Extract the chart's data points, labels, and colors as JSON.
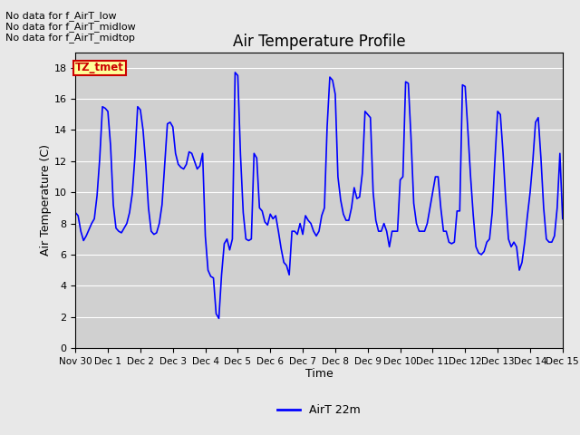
{
  "title": "Air Temperature Profile",
  "xlabel": "Time",
  "ylabel": "Air Temperature (C)",
  "ylim": [
    0,
    19
  ],
  "yticks": [
    0,
    2,
    4,
    6,
    8,
    10,
    12,
    14,
    16,
    18
  ],
  "line_color": "blue",
  "line_width": 1.2,
  "legend_label": "AirT 22m",
  "legend_line_color": "blue",
  "no_data_texts": [
    "No data for f_AirT_low",
    "No data for f_AirT_midlow",
    "No data for f_AirT_midtop"
  ],
  "tz_tmet_label": "TZ_tmet",
  "tz_tmet_color": "#cc0000",
  "tz_tmet_bg": "#ffff99",
  "background_color": "#e8e8e8",
  "plot_bg_color": "#d0d0d0",
  "x_tick_labels": [
    "Nov 30",
    "Dec 1",
    "Dec 2",
    "Dec 3",
    "Dec 4",
    "Dec 5",
    "Dec 6",
    "Dec 7",
    "Dec 8",
    "Dec 9",
    "Dec 10",
    "Dec 11",
    "Dec 12",
    "Dec 13",
    "Dec 14",
    "Dec 15"
  ],
  "temp_data_x": [
    0.0,
    0.083,
    0.167,
    0.25,
    0.333,
    0.417,
    0.5,
    0.583,
    0.667,
    0.75,
    0.833,
    0.917,
    1.0,
    1.083,
    1.167,
    1.25,
    1.333,
    1.417,
    1.5,
    1.583,
    1.667,
    1.75,
    1.833,
    1.917,
    2.0,
    2.083,
    2.167,
    2.25,
    2.333,
    2.417,
    2.5,
    2.583,
    2.667,
    2.75,
    2.833,
    2.917,
    3.0,
    3.083,
    3.167,
    3.25,
    3.333,
    3.417,
    3.5,
    3.583,
    3.667,
    3.75,
    3.833,
    3.917,
    4.0,
    4.083,
    4.167,
    4.25,
    4.333,
    4.417,
    4.5,
    4.583,
    4.667,
    4.75,
    4.833,
    4.917,
    5.0,
    5.083,
    5.167,
    5.25,
    5.333,
    5.417,
    5.5,
    5.583,
    5.667,
    5.75,
    5.833,
    5.917,
    6.0,
    6.083,
    6.167,
    6.25,
    6.333,
    6.417,
    6.5,
    6.583,
    6.667,
    6.75,
    6.833,
    6.917,
    7.0,
    7.083,
    7.167,
    7.25,
    7.333,
    7.417,
    7.5,
    7.583,
    7.667,
    7.75,
    7.833,
    7.917,
    8.0,
    8.083,
    8.167,
    8.25,
    8.333,
    8.417,
    8.5,
    8.583,
    8.667,
    8.75,
    8.833,
    8.917,
    9.0,
    9.083,
    9.167,
    9.25,
    9.333,
    9.417,
    9.5,
    9.583,
    9.667,
    9.75,
    9.833,
    9.917,
    10.0,
    10.083,
    10.167,
    10.25,
    10.333,
    10.417,
    10.5,
    10.583,
    10.667,
    10.75,
    10.833,
    10.917,
    11.0,
    11.083,
    11.167,
    11.25,
    11.333,
    11.417,
    11.5,
    11.583,
    11.667,
    11.75,
    11.833,
    11.917,
    12.0,
    12.083,
    12.167,
    12.25,
    12.333,
    12.417,
    12.5,
    12.583,
    12.667,
    12.75,
    12.833,
    12.917,
    13.0,
    13.083,
    13.167,
    13.25,
    13.333,
    13.417,
    13.5,
    13.583,
    13.667,
    13.75,
    13.833,
    13.917,
    14.0,
    14.083,
    14.167,
    14.25,
    14.333,
    14.417,
    14.5,
    14.583,
    14.667,
    14.75,
    14.833,
    14.917,
    15.0
  ],
  "temp_data_y": [
    8.7,
    8.5,
    7.5,
    6.9,
    7.2,
    7.6,
    8.0,
    8.3,
    9.8,
    12.2,
    15.5,
    15.4,
    15.2,
    13.0,
    9.2,
    7.7,
    7.5,
    7.4,
    7.7,
    8.0,
    8.7,
    9.9,
    12.3,
    15.5,
    15.3,
    14.0,
    11.8,
    9.0,
    7.5,
    7.3,
    7.4,
    8.0,
    9.2,
    11.8,
    14.4,
    14.5,
    14.2,
    12.5,
    11.8,
    11.6,
    11.5,
    11.8,
    12.6,
    12.5,
    12.0,
    11.5,
    11.7,
    12.5,
    7.2,
    5.0,
    4.6,
    4.5,
    2.2,
    1.9,
    4.7,
    6.7,
    7.0,
    6.3,
    7.0,
    17.7,
    17.5,
    12.4,
    8.7,
    7.0,
    6.9,
    7.0,
    12.5,
    12.2,
    9.0,
    8.8,
    8.1,
    7.9,
    8.6,
    8.3,
    8.5,
    7.5,
    6.4,
    5.5,
    5.3,
    4.7,
    7.5,
    7.5,
    7.3,
    8.0,
    7.3,
    8.5,
    8.2,
    8.0,
    7.5,
    7.2,
    7.5,
    8.5,
    9.0,
    14.2,
    17.4,
    17.2,
    16.3,
    11.0,
    9.5,
    8.6,
    8.2,
    8.2,
    9.0,
    10.3,
    9.6,
    9.7,
    11.2,
    15.2,
    15.0,
    14.8,
    10.0,
    8.2,
    7.5,
    7.5,
    8.0,
    7.5,
    6.5,
    7.5,
    7.5,
    7.5,
    10.8,
    11.0,
    17.1,
    17.0,
    13.5,
    9.3,
    8.0,
    7.5,
    7.5,
    7.5,
    8.0,
    9.0,
    10.0,
    11.0,
    11.0,
    9.0,
    7.5,
    7.5,
    6.8,
    6.7,
    6.8,
    8.8,
    8.8,
    16.9,
    16.8,
    14.0,
    11.0,
    8.5,
    6.5,
    6.1,
    6.0,
    6.2,
    6.8,
    7.0,
    8.7,
    12.1,
    15.2,
    15.0,
    12.5,
    9.5,
    7.0,
    6.5,
    6.8,
    6.5,
    5.0,
    5.5,
    6.8,
    8.5,
    10.0,
    12.0,
    14.5,
    14.8,
    12.2,
    9.0,
    7.0,
    6.8,
    6.8,
    7.2,
    9.0,
    12.5,
    8.3
  ]
}
